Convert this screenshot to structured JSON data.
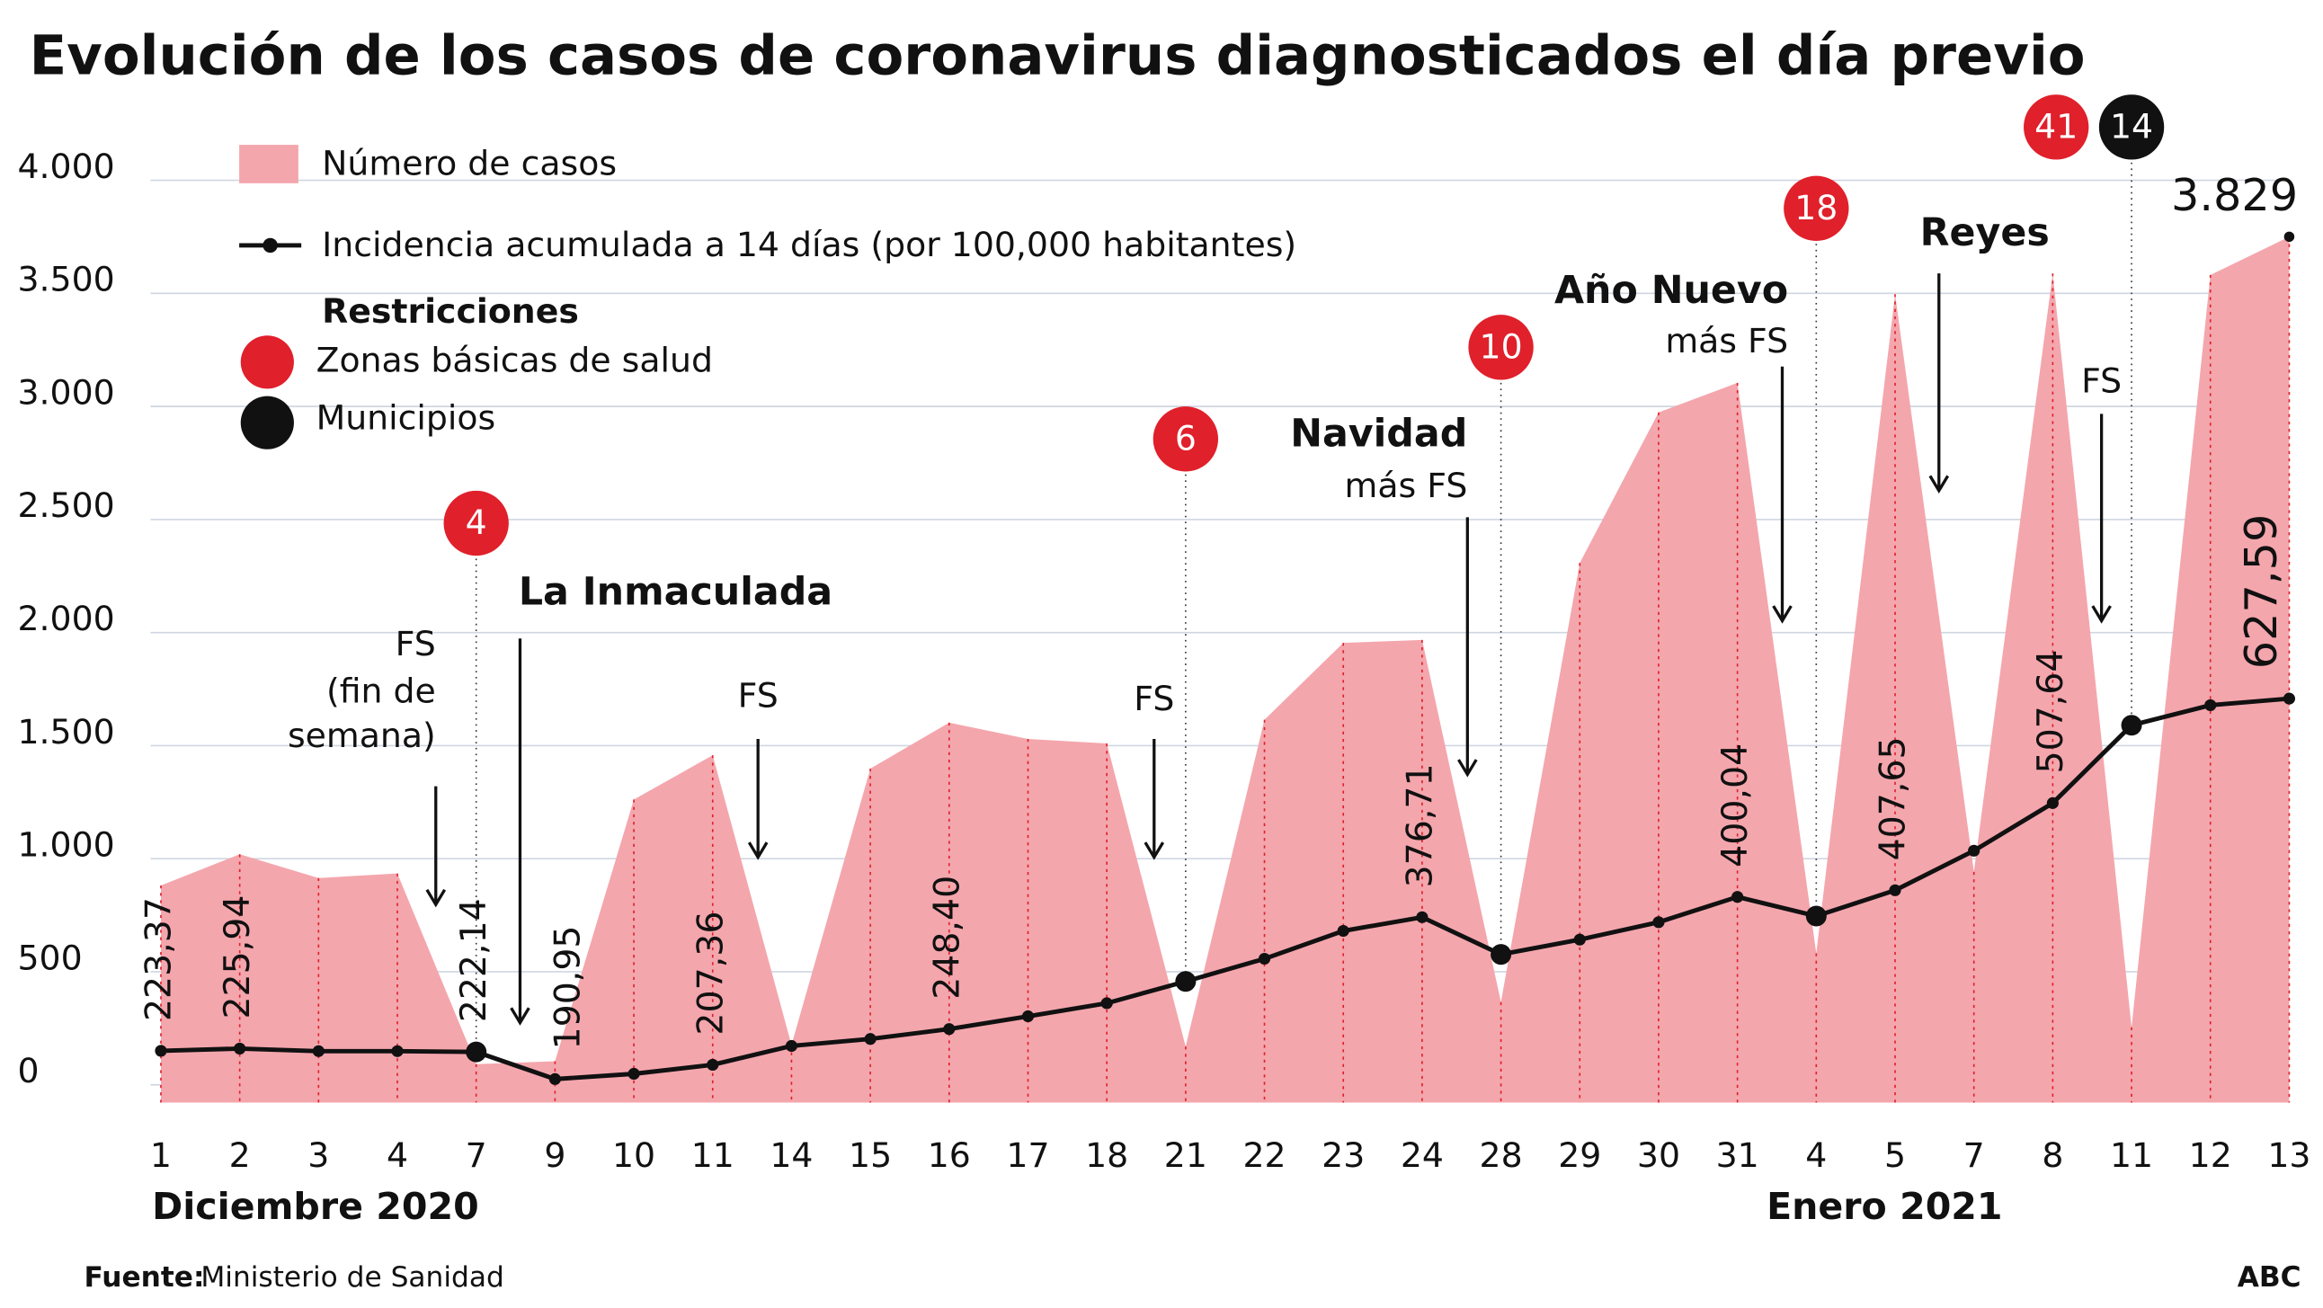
{
  "chart_data": {
    "type": "area",
    "title": "Evolución de los casos de coronavirus diagnosticados el día previo",
    "categories": [
      "1",
      "2",
      "3",
      "4",
      "7",
      "9",
      "10",
      "11",
      "14",
      "15",
      "16",
      "17",
      "18",
      "21",
      "22",
      "23",
      "24",
      "28",
      "29",
      "30",
      "31",
      "4",
      "5",
      "7",
      "8",
      "11",
      "12",
      "13"
    ],
    "month_labels": [
      "Diciembre 2020",
      "Enero 2021"
    ],
    "series": [
      {
        "name": "Número de casos",
        "color": "#f4a6ad",
        "values": [
          960,
          1098,
          993,
          1013,
          170,
          183,
          1340,
          1536,
          255,
          1477,
          1680,
          1608,
          1588,
          248,
          1693,
          2033,
          2046,
          444,
          2386,
          3052,
          3183,
          660,
          3575,
          1020,
          3667,
          333,
          3660,
          3829
        ],
        "value_labels": [
          null,
          null,
          null,
          null,
          null,
          null,
          null,
          null,
          null,
          null,
          null,
          null,
          null,
          null,
          null,
          null,
          null,
          null,
          null,
          null,
          null,
          null,
          null,
          null,
          null,
          null,
          null,
          "3.829"
        ]
      },
      {
        "name": "Incidencia acumulada a 14 días (por 100,000 habitantes)",
        "color": "#111111",
        "axis": "y2",
        "values": [
          223.37,
          225.94,
          223,
          223,
          222.14,
          190.95,
          197,
          207.36,
          229,
          237,
          248.4,
          263,
          278,
          303,
          329,
          361,
          376.71,
          334,
          351,
          371,
          400.04,
          378,
          407.65,
          453,
          507.64,
          597,
          620,
          627.59
        ],
        "value_labels": [
          "223,37",
          "225,94",
          null,
          null,
          "222,14",
          "190,95",
          null,
          "207,36",
          null,
          null,
          "248,40",
          null,
          null,
          null,
          null,
          null,
          "376,71",
          null,
          null,
          null,
          "400,04",
          null,
          "407,65",
          null,
          "507,64",
          null,
          null,
          "627,59"
        ]
      }
    ],
    "ylim": [
      0,
      4000
    ],
    "yticks": [
      0,
      500,
      {
        "value": 1000,
        "label": "1.000"
      },
      {
        "value": 1500,
        "label": "1.500"
      },
      {
        "value": 2000,
        "label": "2.000"
      },
      {
        "value": 2500,
        "label": "2.500"
      },
      {
        "value": 3000,
        "label": "3.000"
      },
      {
        "value": 3500,
        "label": "3.500"
      },
      {
        "value": 4000,
        "label": "4.000"
      }
    ],
    "y2lim": [
      164,
      1202
    ],
    "grid": true,
    "restrictions": {
      "title": "Restricciones",
      "zonas": {
        "name": "Zonas básicas de salud",
        "color": "#e0202b",
        "values": [
          null,
          null,
          null,
          null,
          4,
          null,
          null,
          null,
          null,
          null,
          null,
          null,
          null,
          6,
          null,
          null,
          null,
          10,
          null,
          null,
          null,
          18,
          null,
          null,
          null,
          41,
          null,
          null
        ]
      },
      "municipios": {
        "name": "Municipios",
        "color": "#111111",
        "values": [
          null,
          null,
          null,
          null,
          null,
          null,
          null,
          null,
          null,
          null,
          null,
          null,
          null,
          null,
          null,
          null,
          null,
          null,
          null,
          null,
          null,
          null,
          null,
          null,
          null,
          14,
          null,
          null
        ]
      }
    },
    "annotations": [
      {
        "lines": [
          "FS",
          "(fin de",
          "semana)"
        ]
      },
      {
        "lines": [
          "La Inmaculada"
        ]
      },
      {
        "lines": [
          "FS"
        ]
      },
      {
        "lines": [
          "FS"
        ]
      },
      {
        "lines": [
          "Navidad",
          "más FS"
        ]
      },
      {
        "lines": [
          "Año Nuevo",
          "más FS"
        ]
      },
      {
        "lines": [
          "Reyes"
        ]
      },
      {
        "lines": [
          "FS"
        ]
      }
    ],
    "source_label": "Fuente:",
    "source": "Ministerio de Sanidad",
    "credit": "ABC"
  }
}
